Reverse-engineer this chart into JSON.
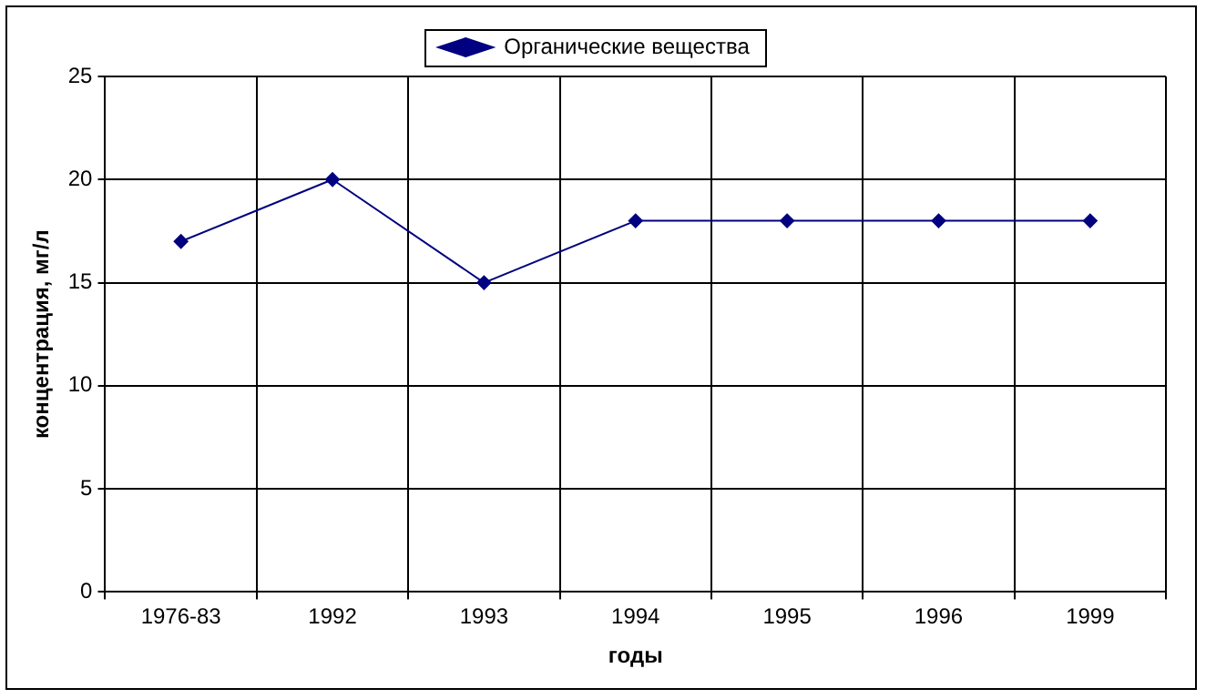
{
  "chart_data": {
    "type": "line",
    "xlabel": "годы",
    "ylabel": "концентрация, мг/л",
    "categories": [
      "1976-83",
      "1992",
      "1993",
      "1994",
      "1995",
      "1996",
      "1999"
    ],
    "series": [
      {
        "name": "Органические вещества",
        "color": "#000080",
        "values": [
          17,
          20,
          15,
          18,
          18,
          18,
          18
        ]
      }
    ],
    "ylim": [
      0,
      25
    ],
    "yticks": [
      0,
      5,
      10,
      15,
      20,
      25
    ],
    "grid": true,
    "legend": "top",
    "marker": "diamond",
    "line_style": "solid"
  }
}
